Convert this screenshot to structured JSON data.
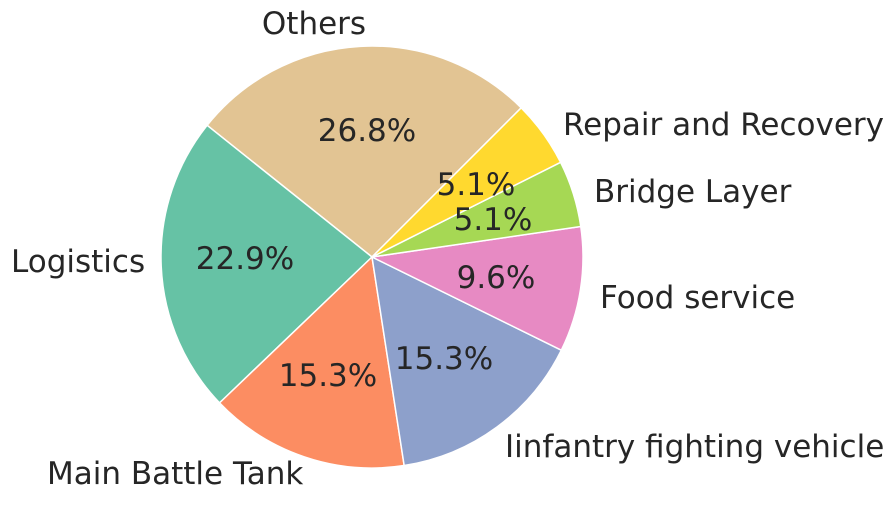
{
  "chart_data": {
    "type": "pie",
    "categories": [
      "Others",
      "Logistics",
      "Main Battle Tank",
      "Iinfantry fighting vehicle",
      "Food service",
      "Bridge Layer",
      "Repair and Recovery"
    ],
    "values": [
      26.8,
      22.9,
      15.3,
      15.3,
      9.6,
      5.1,
      5.1
    ],
    "value_labels": [
      "26.8%",
      "22.9%",
      "15.3%",
      "15.3%",
      "9.6%",
      "5.1%",
      "5.1%"
    ],
    "colors": [
      "#e2c493",
      "#66c2a5",
      "#fc8d62",
      "#8da0cb",
      "#e78ac3",
      "#a6d854",
      "#ffd92f"
    ],
    "start_angle_deg": 45,
    "direction": "counterclockwise",
    "edge_color": "#ffffff",
    "title": "",
    "legend": "none"
  }
}
